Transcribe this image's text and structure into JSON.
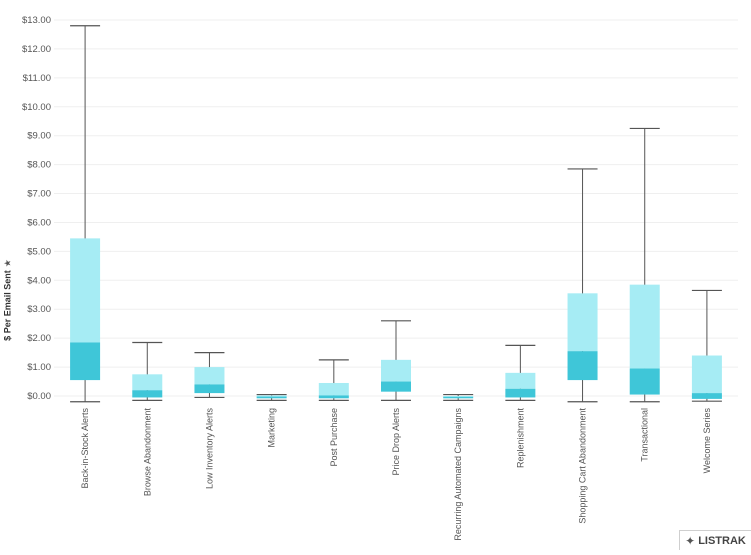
{
  "chart_data": {
    "type": "box",
    "ylabel": "$ Per Email Sent",
    "ylim": [
      -0.2,
      13.2
    ],
    "yticks": [
      "$0.00",
      "$1.00",
      "$2.00",
      "$3.00",
      "$4.00",
      "$5.00",
      "$6.00",
      "$7.00",
      "$8.00",
      "$9.00",
      "$10.00",
      "$11.00",
      "$12.00",
      "$13.00"
    ],
    "ytick_values": [
      0,
      1,
      2,
      3,
      4,
      5,
      6,
      7,
      8,
      9,
      10,
      11,
      12,
      13
    ],
    "grid": true,
    "colors": {
      "upper_box": "#a6ecf4",
      "lower_box": "#3fc6d8",
      "whisker": "#555555",
      "grid": "#efefef"
    },
    "categories": [
      "Back-in-Stock Alerts",
      "Browse Abandonment",
      "Low Inventory Alerts",
      "Marketing",
      "Post Purchase",
      "Price Drop Alerts",
      "Recurring Automated Campaigns",
      "Replenishment",
      "Shopping Cart Abandonment",
      "Transactional",
      "Welcome Series"
    ],
    "boxes": [
      {
        "min": -0.2,
        "q1": 0.55,
        "median": 1.85,
        "q3": 5.45,
        "max": 12.8
      },
      {
        "min": -0.15,
        "q1": -0.05,
        "median": 0.2,
        "q3": 0.75,
        "max": 1.85
      },
      {
        "min": -0.05,
        "q1": 0.1,
        "median": 0.4,
        "q3": 1.0,
        "max": 1.5
      },
      {
        "min": -0.15,
        "q1": -0.08,
        "median": -0.02,
        "q3": 0.02,
        "max": 0.05
      },
      {
        "min": -0.15,
        "q1": -0.08,
        "median": 0.02,
        "q3": 0.45,
        "max": 1.25
      },
      {
        "min": -0.15,
        "q1": 0.15,
        "median": 0.5,
        "q3": 1.25,
        "max": 2.6
      },
      {
        "min": -0.15,
        "q1": -0.08,
        "median": -0.03,
        "q3": 0.0,
        "max": 0.05
      },
      {
        "min": -0.15,
        "q1": -0.05,
        "median": 0.25,
        "q3": 0.8,
        "max": 1.75
      },
      {
        "min": -0.2,
        "q1": 0.55,
        "median": 1.55,
        "q3": 3.55,
        "max": 7.85
      },
      {
        "min": -0.2,
        "q1": 0.05,
        "median": 0.95,
        "q3": 3.85,
        "max": 9.25
      },
      {
        "min": -0.18,
        "q1": -0.1,
        "median": 0.1,
        "q3": 1.4,
        "max": 3.65
      }
    ]
  },
  "logo": {
    "text": "LISTRAK",
    "icon": "listrak-star-icon"
  }
}
